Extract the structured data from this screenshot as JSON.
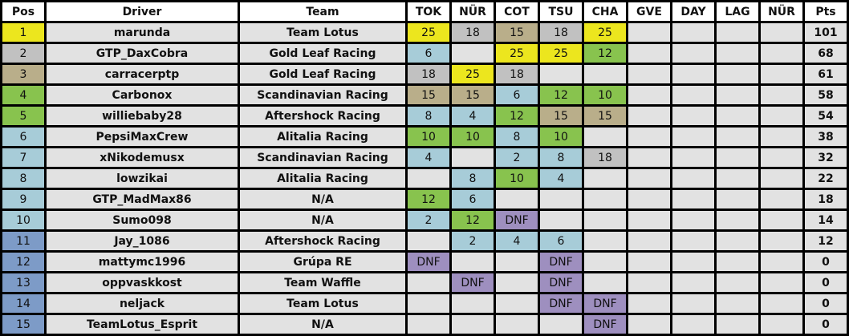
{
  "headers": [
    "Pos",
    "Driver",
    "Team",
    "TOK",
    "NÜR",
    "COT",
    "TSU",
    "CHA",
    "GVE",
    "DAY",
    "LAG",
    "NÜR",
    "Pts"
  ],
  "colors": {
    "p25": "#ece61e",
    "p18": "#c1c1c1",
    "p15": "#b9ae8a",
    "p12": "#88c34e",
    "p10": "#88c34e",
    "p8": "#a7ccd8",
    "p6": "#a7ccd8",
    "p4": "#a7ccd8",
    "p2": "#a7ccd8",
    "dnf": "#9e8fbf",
    "empty": "#e2e2e2",
    "pos1": "#ece61e",
    "pos2": "#c1c1c1",
    "pos3": "#b9ae8a",
    "pos4_5": "#88c34e",
    "pos6_10": "#a7ccd8",
    "pos11_15": "#7d9bc7"
  },
  "rows": [
    {
      "pos": "1",
      "driver": "marunda",
      "team": "Team Lotus",
      "results": [
        "25",
        "18",
        "15",
        "18",
        "25",
        "",
        "",
        "",
        ""
      ],
      "pts": "101"
    },
    {
      "pos": "2",
      "driver": "GTP_DaxCobra",
      "team": "Gold Leaf Racing",
      "results": [
        "6",
        "",
        "25",
        "25",
        "12",
        "",
        "",
        "",
        ""
      ],
      "pts": "68"
    },
    {
      "pos": "3",
      "driver": "carracerptp",
      "team": "Gold Leaf Racing",
      "results": [
        "18",
        "25",
        "18",
        "",
        "",
        "",
        "",
        "",
        ""
      ],
      "pts": "61"
    },
    {
      "pos": "4",
      "driver": "Carbonox",
      "team": "Scandinavian Racing",
      "results": [
        "15",
        "15",
        "6",
        "12",
        "10",
        "",
        "",
        "",
        ""
      ],
      "pts": "58"
    },
    {
      "pos": "5",
      "driver": "williebaby28",
      "team": "Aftershock Racing",
      "results": [
        "8",
        "4",
        "12",
        "15",
        "15",
        "",
        "",
        "",
        ""
      ],
      "pts": "54"
    },
    {
      "pos": "6",
      "driver": "PepsiMaxCrew",
      "team": "Alitalia Racing",
      "results": [
        "10",
        "10",
        "8",
        "10",
        "",
        "",
        "",
        "",
        ""
      ],
      "pts": "38"
    },
    {
      "pos": "7",
      "driver": "xNikodemusx",
      "team": "Scandinavian Racing",
      "results": [
        "4",
        "",
        "2",
        "8",
        "18",
        "",
        "",
        "",
        ""
      ],
      "pts": "32"
    },
    {
      "pos": "8",
      "driver": "lowzikai",
      "team": "Alitalia Racing",
      "results": [
        "",
        "8",
        "10",
        "4",
        "",
        "",
        "",
        "",
        ""
      ],
      "pts": "22"
    },
    {
      "pos": "9",
      "driver": "GTP_MadMax86",
      "team": "N/A",
      "results": [
        "12",
        "6",
        "",
        "",
        "",
        "",
        "",
        "",
        ""
      ],
      "pts": "18"
    },
    {
      "pos": "10",
      "driver": "Sumo098",
      "team": "N/A",
      "results": [
        "2",
        "12",
        "DNF",
        "",
        "",
        "",
        "",
        "",
        ""
      ],
      "pts": "14"
    },
    {
      "pos": "11",
      "driver": "Jay_1086",
      "team": "Aftershock Racing",
      "results": [
        "",
        "2",
        "4",
        "6",
        "",
        "",
        "",
        "",
        ""
      ],
      "pts": "12"
    },
    {
      "pos": "12",
      "driver": "mattymc1996",
      "team": "Grúpa RE",
      "results": [
        "DNF",
        "",
        "",
        "DNF",
        "",
        "",
        "",
        "",
        ""
      ],
      "pts": "0"
    },
    {
      "pos": "13",
      "driver": "oppvaskkost",
      "team": "Team Waffle",
      "results": [
        "",
        "DNF",
        "",
        "DNF",
        "",
        "",
        "",
        "",
        ""
      ],
      "pts": "0"
    },
    {
      "pos": "14",
      "driver": "neljack",
      "team": "Team Lotus",
      "results": [
        "",
        "",
        "",
        "DNF",
        "DNF",
        "",
        "",
        "",
        ""
      ],
      "pts": "0"
    },
    {
      "pos": "15",
      "driver": "TeamLotus_Esprit",
      "team": "N/A",
      "results": [
        "",
        "",
        "",
        "",
        "DNF",
        "",
        "",
        "",
        ""
      ],
      "pts": "0"
    }
  ]
}
